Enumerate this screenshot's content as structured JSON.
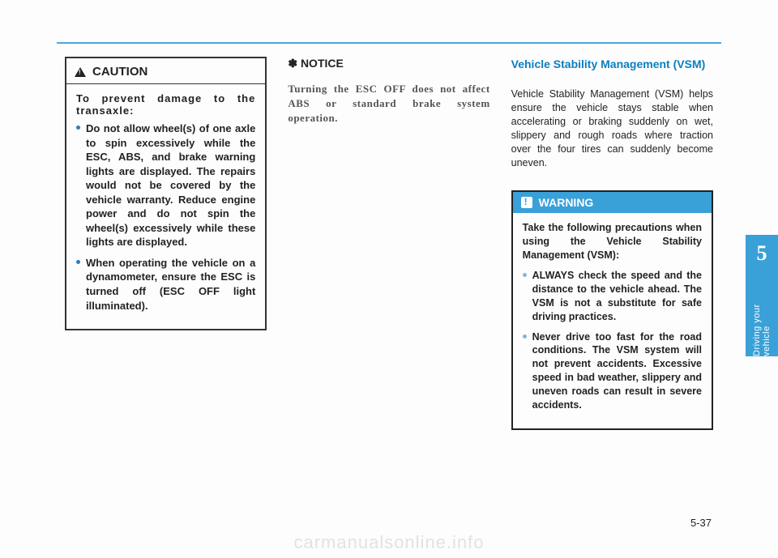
{
  "colors": {
    "accent": "#3aa0d8",
    "rule": "#4aa6e0",
    "section_head": "#0a7ec2",
    "text": "#222222",
    "notice_text": "#555555",
    "box_border": "#333333",
    "bullet_dark": "#2c7cb8",
    "bullet_light": "#7fb8dd",
    "watermark": "#e2e2e2",
    "page_bg": "#fdfdfd"
  },
  "caution": {
    "title": "CAUTION",
    "intro": "To prevent damage to the transaxle:",
    "bullets": [
      "Do not allow wheel(s) of one axle to spin excessively while the ESC, ABS, and brake warning lights are displayed. The repairs would not be covered by the vehicle warranty. Reduce engine power and do not spin the wheel(s) excessively while these lights are displayed.",
      "When operating the vehicle on a dynamometer, ensure the ESC is turned off (ESC OFF light illuminated)."
    ]
  },
  "notice": {
    "title": "✽ NOTICE",
    "body": "Turning the ESC OFF does not affect ABS or standard brake system operation."
  },
  "vsm": {
    "title": "Vehicle Stability Management (VSM)",
    "body": "Vehicle Stability Management (VSM) helps ensure the vehicle stays stable when accelerating or braking suddenly on wet, slippery and rough roads where traction over the four tires  can suddenly become uneven."
  },
  "warning": {
    "title": "WARNING",
    "intro": "Take the following precautions when using the Vehicle Stability Management (VSM):",
    "bullets": [
      "ALWAYS check the speed and the distance to the vehicle ahead. The VSM is not a substitute for safe driving practices.",
      "Never drive too fast for the road conditions. The VSM system will not prevent accidents. Excessive speed in bad weather, slippery and uneven roads can result in severe accidents."
    ]
  },
  "side_tab": {
    "number": "5",
    "label": "Driving your vehicle"
  },
  "page_number": "5-37",
  "watermark": "carmanualsonline.info"
}
